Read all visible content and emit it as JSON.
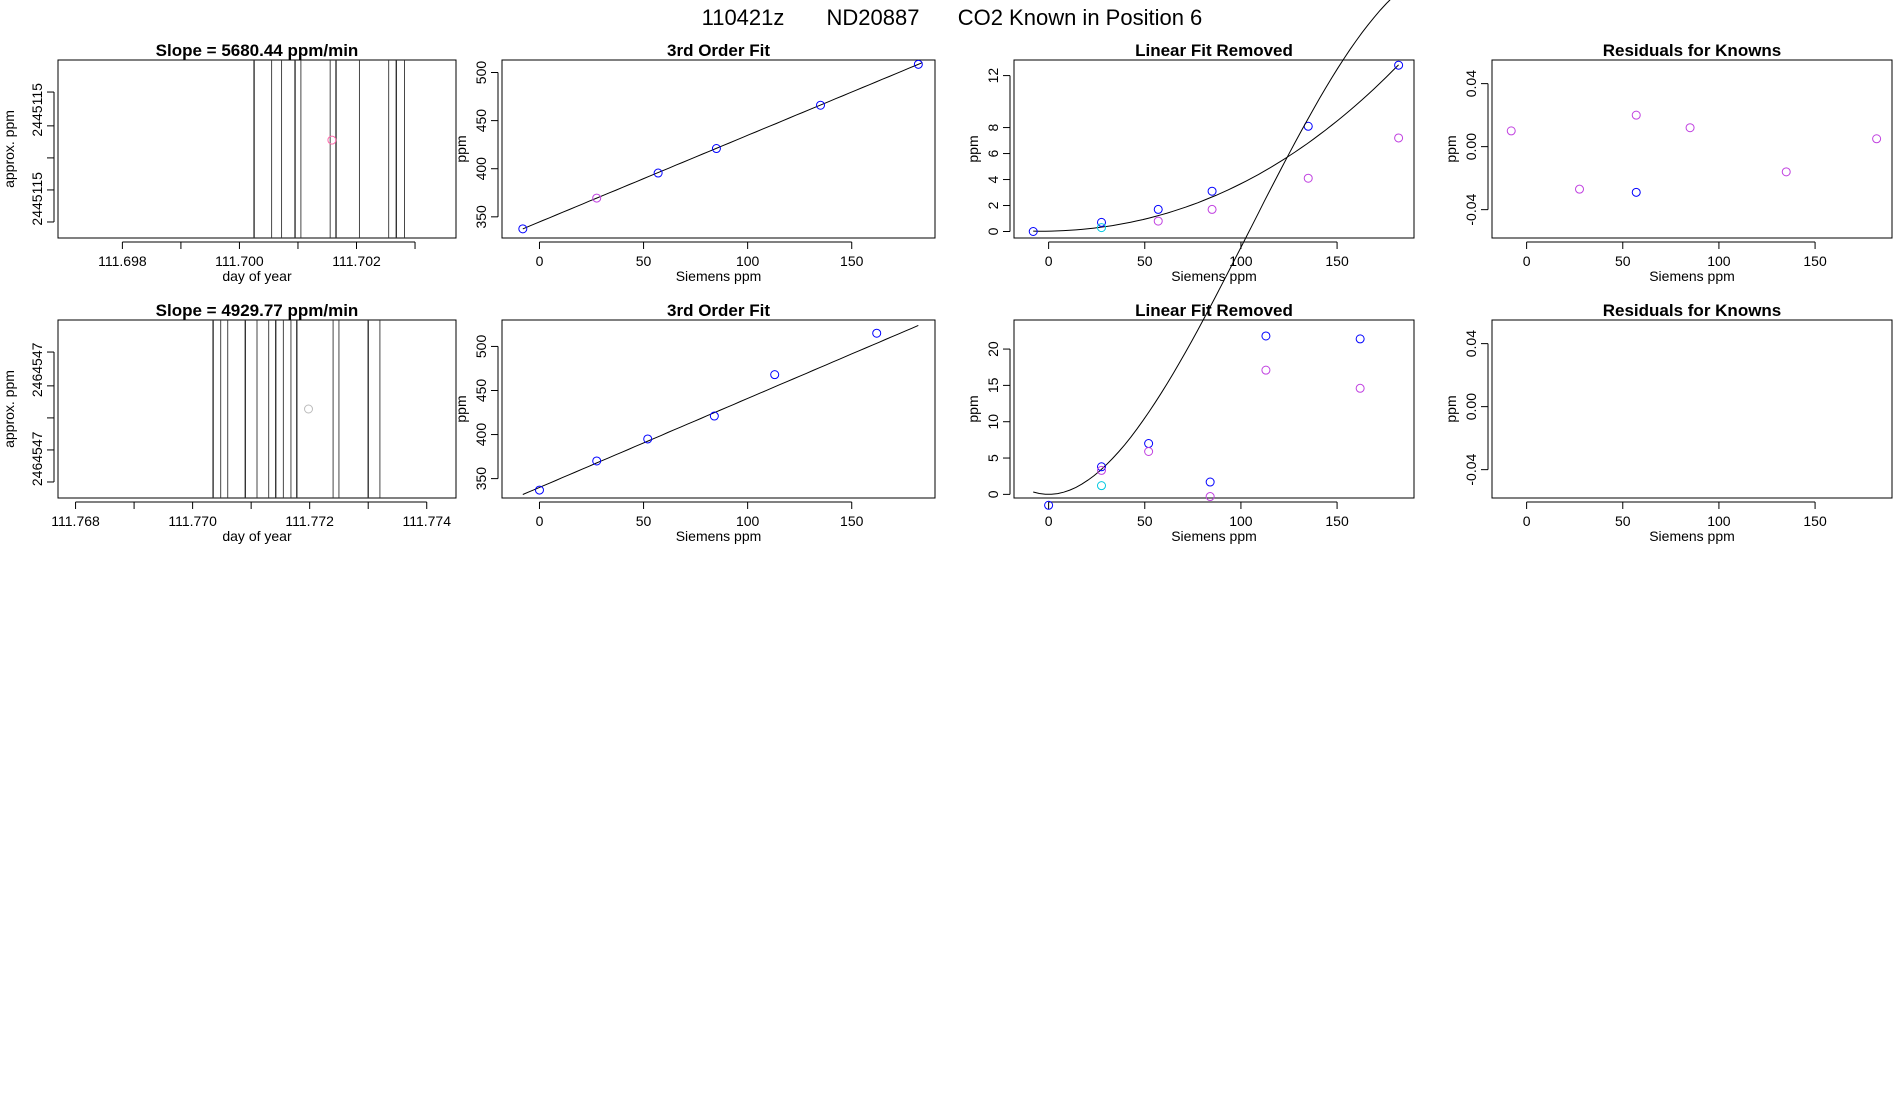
{
  "figure": {
    "title_id": "110421z",
    "title_tank": "ND20887",
    "title_desc": "CO2 Known in Position  6"
  },
  "colors": {
    "blue": "#0000ff",
    "magenta": "#c040e0",
    "cyan": "#00c8e0",
    "line": "#000000",
    "pink": "#ff66aa",
    "palegray": "#bbbbbb"
  },
  "chart_data": [
    {
      "type": "scatter",
      "title": "Slope =  5680.44  ppm/min",
      "xlabel": "day of year",
      "ylabel": "approx. ppm",
      "xlim": [
        111.6969,
        111.7037
      ],
      "xticks": [
        111.698,
        111.7,
        111.702
      ],
      "xtick_labels": [
        "111.698",
        "111.700",
        "111.702"
      ],
      "xtick_minor": [
        111.699,
        111.701,
        111.703
      ],
      "ytick_labels": [
        "2445115",
        "2445115"
      ],
      "vlines": [
        111.70025,
        111.70055,
        111.70072,
        111.70095,
        111.70105,
        111.70155,
        111.70165,
        111.70205,
        111.70255,
        111.70268,
        111.70282
      ],
      "points": [
        {
          "x": 111.70158,
          "y": 0.55,
          "color": "pink"
        }
      ]
    },
    {
      "type": "line",
      "title": "3rd Order Fit",
      "xlabel": "Siemens ppm",
      "ylabel": "ppm",
      "xlim": [
        -18,
        190
      ],
      "ylim": [
        328,
        513
      ],
      "xticks": [
        0,
        50,
        100,
        150
      ],
      "yticks": [
        350,
        400,
        450,
        500
      ],
      "curve_x": [
        -8,
        184
      ],
      "curve_coef": [
        344.7,
        0.9,
        0.0,
        0.0
      ],
      "points": [
        {
          "x": -8,
          "y": 337.5,
          "color": "blue"
        },
        {
          "x": 27.5,
          "y": 369.5,
          "color": "magenta"
        },
        {
          "x": 57,
          "y": 395.5,
          "color": "blue"
        },
        {
          "x": 85,
          "y": 421,
          "color": "blue"
        },
        {
          "x": 135,
          "y": 466,
          "color": "blue"
        },
        {
          "x": 182,
          "y": 508.5,
          "color": "blue"
        }
      ]
    },
    {
      "type": "line",
      "title": "Linear Fit Removed",
      "xlabel": "Siemens ppm",
      "ylabel": "ppm",
      "xlim": [
        -18,
        190
      ],
      "ylim": [
        -0.5,
        13.2
      ],
      "xticks": [
        0,
        50,
        100,
        150
      ],
      "yticks": [
        0,
        2,
        4,
        6,
        8,
        12
      ],
      "curve_x": [
        -8,
        182
      ],
      "curve_coef": [
        0.03,
        0.0025,
        0.0003,
        4e-07
      ],
      "points": [
        {
          "x": -8,
          "y": 0.0,
          "color": "blue"
        },
        {
          "x": 27.5,
          "y": 0.7,
          "color": "blue"
        },
        {
          "x": 27.5,
          "y": 0.3,
          "color": "cyan"
        },
        {
          "x": 57,
          "y": 1.7,
          "color": "blue"
        },
        {
          "x": 57,
          "y": 0.8,
          "color": "magenta"
        },
        {
          "x": 85,
          "y": 3.1,
          "color": "blue"
        },
        {
          "x": 85,
          "y": 1.7,
          "color": "magenta"
        },
        {
          "x": 135,
          "y": 8.1,
          "color": "blue"
        },
        {
          "x": 135,
          "y": 4.1,
          "color": "magenta"
        },
        {
          "x": 182,
          "y": 12.8,
          "color": "blue"
        },
        {
          "x": 182,
          "y": 7.2,
          "color": "magenta"
        }
      ]
    },
    {
      "type": "scatter",
      "title": "Residuals for Knowns",
      "xlabel": "Siemens ppm",
      "ylabel": "ppm",
      "xlim": [
        -18,
        190
      ],
      "ylim": [
        -0.058,
        0.055
      ],
      "xticks": [
        0,
        50,
        100,
        150
      ],
      "yticks": [
        -0.04,
        0.0,
        0.04
      ],
      "ytick_labels": [
        "-0.04",
        "0.00",
        "0.04"
      ],
      "points": [
        {
          "x": -8,
          "y": 0.01,
          "color": "magenta"
        },
        {
          "x": 27.5,
          "y": -0.027,
          "color": "magenta"
        },
        {
          "x": 57,
          "y": 0.02,
          "color": "magenta"
        },
        {
          "x": 57,
          "y": -0.029,
          "color": "blue"
        },
        {
          "x": 85,
          "y": 0.012,
          "color": "magenta"
        },
        {
          "x": 135,
          "y": -0.016,
          "color": "magenta"
        },
        {
          "x": 182,
          "y": 0.005,
          "color": "magenta"
        }
      ]
    },
    {
      "type": "scatter",
      "title": "Slope =  4929.77  ppm/min",
      "xlabel": "day of year",
      "ylabel": "approx. ppm",
      "xlim": [
        111.7677,
        111.7745
      ],
      "xticks": [
        111.768,
        111.77,
        111.772,
        111.774
      ],
      "xtick_labels": [
        "111.768",
        "111.770",
        "111.772",
        "111.774"
      ],
      "xtick_minor": [
        111.769,
        111.771,
        111.773
      ],
      "ytick_labels": [
        "2464547",
        "2464547"
      ],
      "vlines": [
        111.77035,
        111.77048,
        111.7706,
        111.7709,
        111.7711,
        111.7713,
        111.77142,
        111.77155,
        111.77168,
        111.77178,
        111.7724,
        111.7725,
        111.773,
        111.7732
      ],
      "points": [
        {
          "x": 111.77198,
          "y": 0.5,
          "color": "palegray"
        }
      ]
    },
    {
      "type": "line",
      "title": "3rd Order Fit",
      "xlabel": "Siemens ppm",
      "ylabel": "ppm",
      "xlim": [
        -18,
        190
      ],
      "ylim": [
        328,
        530
      ],
      "xticks": [
        0,
        50,
        100,
        150
      ],
      "yticks": [
        350,
        400,
        450,
        500
      ],
      "curve_x": [
        -8,
        182
      ],
      "curve_coef": [
        340,
        1.01,
        0.0,
        0.0
      ],
      "points": [
        {
          "x": 0,
          "y": 337,
          "color": "blue"
        },
        {
          "x": 27.5,
          "y": 370,
          "color": "blue"
        },
        {
          "x": 52,
          "y": 395,
          "color": "blue"
        },
        {
          "x": 84,
          "y": 421,
          "color": "blue"
        },
        {
          "x": 113,
          "y": 468,
          "color": "blue"
        },
        {
          "x": 162,
          "y": 515,
          "color": "blue"
        }
      ]
    },
    {
      "type": "line",
      "title": "Linear Fit Removed",
      "xlabel": "Siemens ppm",
      "ylabel": "ppm",
      "xlim": [
        -18,
        190
      ],
      "ylim": [
        -0.5,
        24
      ],
      "xticks": [
        0,
        50,
        100,
        150
      ],
      "yticks": [
        0,
        5,
        10,
        15,
        20
      ],
      "curve_x": [
        -8,
        182
      ],
      "curve_coef": [
        0.0,
        0.0,
        0.005,
        -1.6e-05
      ],
      "points": [
        {
          "x": 0,
          "y": -1.5,
          "color": "blue"
        },
        {
          "x": 27.5,
          "y": 3.8,
          "color": "blue"
        },
        {
          "x": 27.5,
          "y": 3.3,
          "color": "magenta"
        },
        {
          "x": 27.5,
          "y": 1.2,
          "color": "cyan"
        },
        {
          "x": 52,
          "y": 7.0,
          "color": "blue"
        },
        {
          "x": 52,
          "y": 5.9,
          "color": "magenta"
        },
        {
          "x": 84,
          "y": 1.7,
          "color": "blue"
        },
        {
          "x": 84,
          "y": -0.3,
          "color": "magenta"
        },
        {
          "x": 113,
          "y": 21.8,
          "color": "blue"
        },
        {
          "x": 113,
          "y": 17.1,
          "color": "magenta"
        },
        {
          "x": 162,
          "y": 21.4,
          "color": "blue"
        },
        {
          "x": 162,
          "y": 14.6,
          "color": "magenta"
        }
      ]
    },
    {
      "type": "scatter",
      "title": "Residuals for Knowns",
      "xlabel": "Siemens ppm",
      "ylabel": "ppm",
      "xlim": [
        -18,
        190
      ],
      "ylim": [
        -0.058,
        0.055
      ],
      "xticks": [
        0,
        50,
        100,
        150
      ],
      "yticks": [
        -0.04,
        0.0,
        0.04
      ],
      "ytick_labels": [
        "-0.04",
        "0.00",
        "0.04"
      ],
      "points": []
    }
  ]
}
